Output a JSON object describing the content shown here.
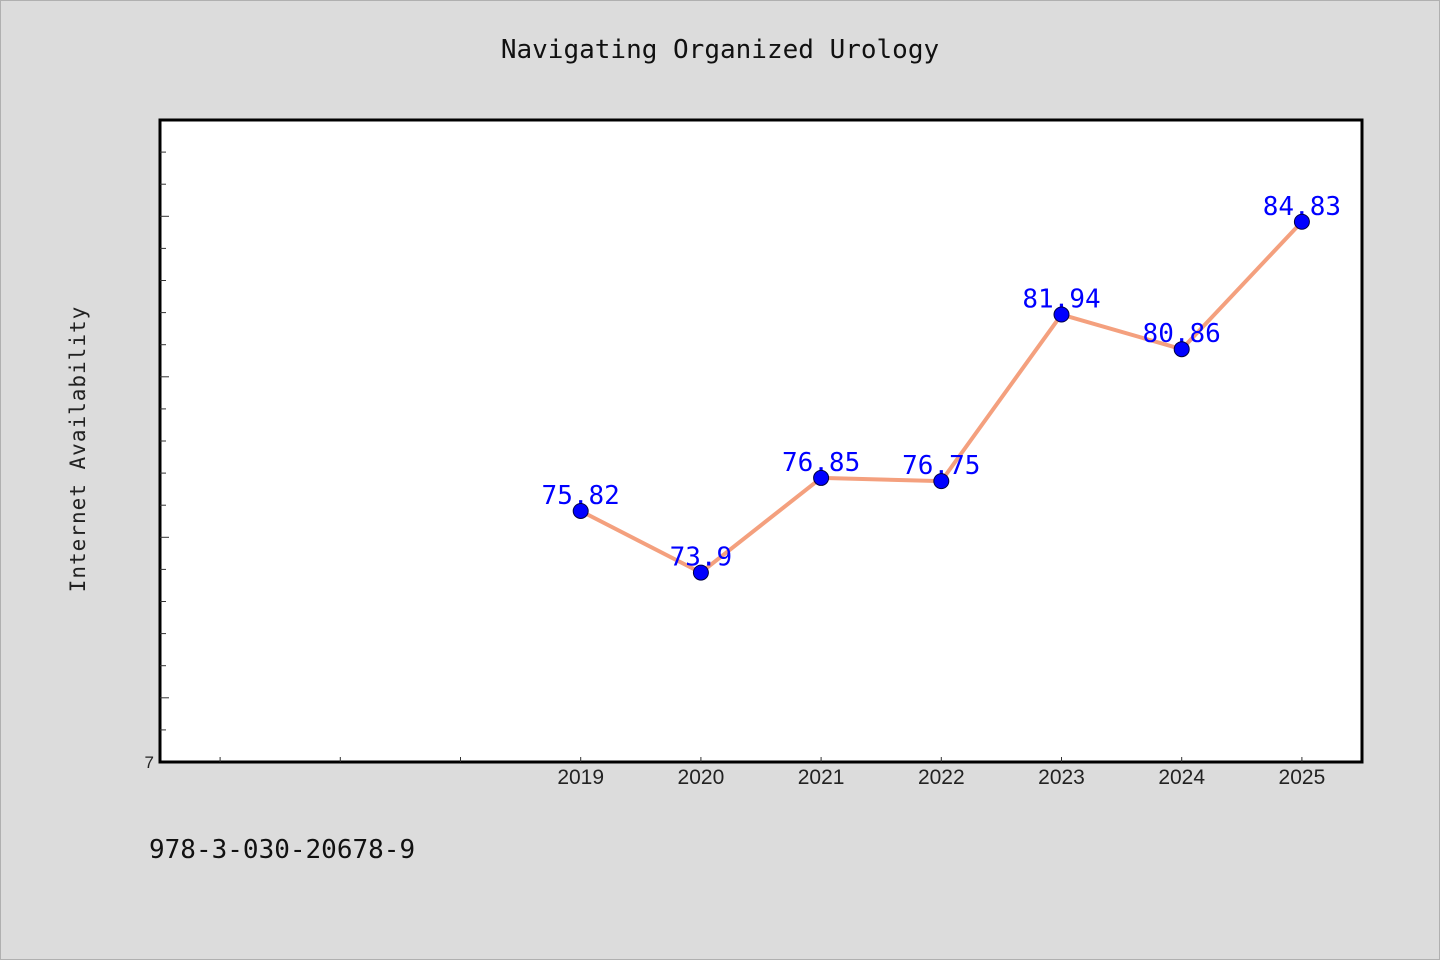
{
  "chart_data": {
    "type": "line",
    "title": "Navigating Organized Urology",
    "xlabel": "",
    "ylabel": "Internet Availability",
    "categories": [
      "2019",
      "2020",
      "2021",
      "2022",
      "2023",
      "2024",
      "2025"
    ],
    "series": [
      {
        "values": [
          75.82,
          73.9,
          76.85,
          76.75,
          81.94,
          80.86,
          84.83
        ],
        "labels": [
          "75.82",
          "73.9",
          "76.85",
          "76.75",
          "81.94",
          "80.86",
          "84.83"
        ]
      }
    ],
    "y_tick_labels": [
      "7"
    ],
    "ylim": [
      68,
      88
    ],
    "x_range": [
      2015.5,
      2025.5
    ],
    "grid": false,
    "line_color": "#f4a07e",
    "marker_color": "#0000ff",
    "label_color": "#0000ff"
  },
  "footer": {
    "text": "978-3-030-20678-9"
  }
}
